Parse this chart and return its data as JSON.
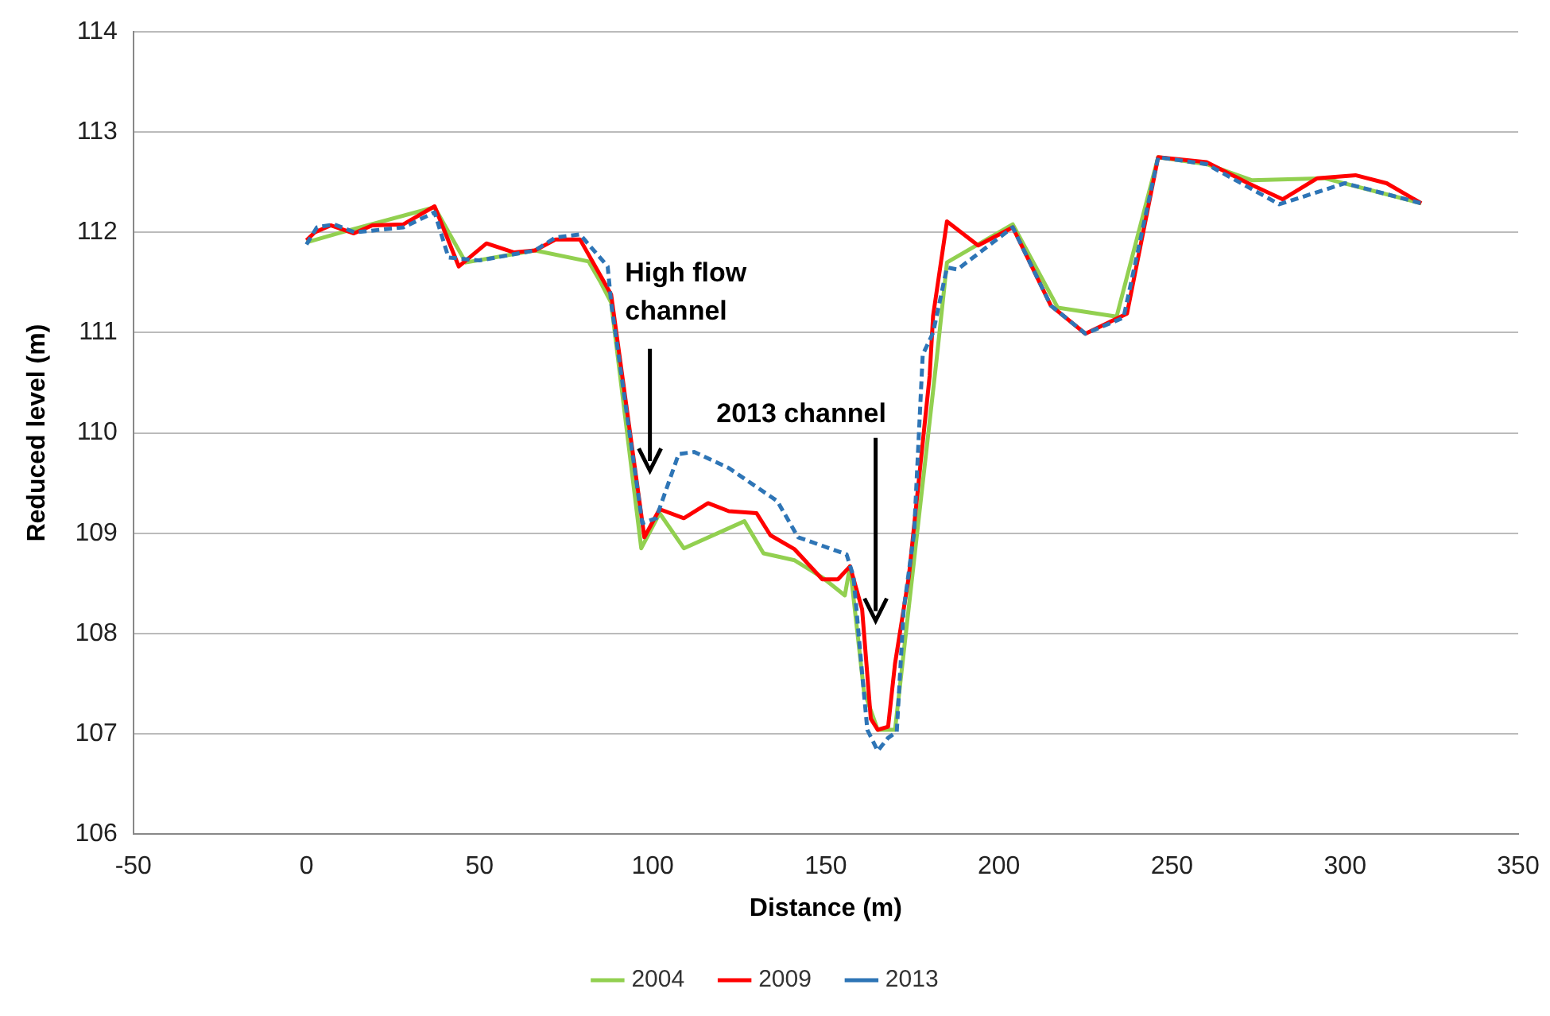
{
  "chart_data": {
    "type": "line",
    "xlabel": "Distance (m)",
    "ylabel": "Reduced level (m)",
    "xlim": [
      -50,
      350
    ],
    "xticks": [
      -50,
      0,
      50,
      100,
      150,
      200,
      250,
      300,
      350
    ],
    "ylim": [
      106,
      114
    ],
    "yticks": [
      106,
      107,
      108,
      109,
      110,
      111,
      112,
      113,
      114
    ],
    "grid": "y",
    "legend": "bottom",
    "marker": "none",
    "series": [
      {
        "name": "2004",
        "color": "#92d050",
        "line_style": "solid",
        "x": [
          0,
          10,
          37,
          46,
          66,
          81.5,
          85,
          88,
          96.7,
          102,
          109,
          126.5,
          132,
          141,
          149,
          155.5,
          157,
          161,
          165,
          170,
          175.5,
          182,
          185,
          204,
          217,
          234,
          246,
          260,
          273,
          294,
          322
        ],
        "values": [
          111.9,
          112.0,
          112.25,
          111.7,
          111.82,
          111.71,
          111.5,
          111.3,
          108.85,
          109.2,
          108.85,
          109.12,
          108.8,
          108.73,
          108.56,
          108.38,
          108.67,
          107.43,
          107.04,
          107.04,
          108.73,
          110.73,
          111.7,
          112.08,
          111.25,
          111.16,
          112.75,
          112.68,
          112.52,
          112.54,
          112.29
        ]
      },
      {
        "name": "2009",
        "color": "#ff0000",
        "line_style": "solid",
        "x": [
          0,
          2.4,
          7,
          13.7,
          19,
          28,
          37,
          44,
          52,
          60,
          66,
          72,
          79,
          88,
          97.6,
          102,
          109,
          116,
          122,
          130,
          134,
          141,
          149,
          153.5,
          157,
          160.5,
          163,
          165,
          168,
          170,
          174,
          180,
          181,
          185,
          194,
          204,
          215,
          225,
          237,
          246,
          260,
          272,
          282,
          292,
          303,
          312,
          322
        ],
        "values": [
          111.92,
          112.0,
          112.07,
          111.99,
          112.07,
          112.08,
          112.26,
          111.66,
          111.89,
          111.8,
          111.82,
          111.93,
          111.93,
          111.38,
          108.96,
          109.24,
          109.15,
          109.3,
          109.22,
          109.2,
          108.98,
          108.84,
          108.54,
          108.54,
          108.67,
          108.24,
          107.15,
          107.04,
          107.07,
          107.7,
          108.57,
          110.57,
          111.17,
          112.11,
          111.87,
          112.05,
          111.27,
          110.99,
          111.19,
          112.75,
          112.7,
          112.49,
          112.33,
          112.54,
          112.57,
          112.49,
          112.29
        ]
      },
      {
        "name": "2013",
        "color": "#2e75b6",
        "line_style": "dashed",
        "x": [
          0,
          3,
          8,
          14,
          28,
          37,
          41,
          50,
          66,
          72,
          79,
          87,
          88,
          97,
          101,
          107.5,
          112,
          122,
          136,
          142,
          156,
          158,
          160.5,
          162,
          165,
          168,
          170.5,
          172.5,
          175.5,
          178,
          181,
          185,
          188,
          204,
          215,
          225,
          236,
          246,
          260,
          281,
          300,
          322
        ],
        "values": [
          111.88,
          112.05,
          112.08,
          112.0,
          112.05,
          112.2,
          111.75,
          111.72,
          111.82,
          111.95,
          111.98,
          111.66,
          111.3,
          109.1,
          109.15,
          109.79,
          109.81,
          109.65,
          109.32,
          108.96,
          108.79,
          108.57,
          107.6,
          107.04,
          106.83,
          106.96,
          107.02,
          108.24,
          109.0,
          110.78,
          111.0,
          111.65,
          111.63,
          112.05,
          111.27,
          110.99,
          111.15,
          112.75,
          112.68,
          112.28,
          112.49,
          112.29
        ]
      }
    ],
    "annotations": [
      "High flow channel",
      "2013 channel"
    ]
  }
}
